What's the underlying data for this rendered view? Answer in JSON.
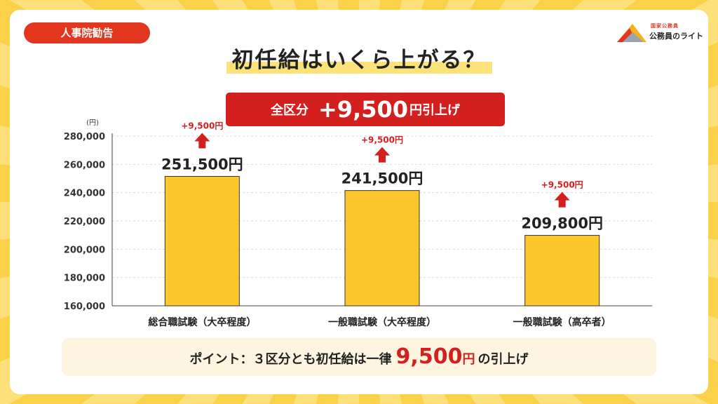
{
  "tag": "人事院勧告",
  "logo": {
    "small": "国家公務員",
    "text": "公務員のライト"
  },
  "title": "初任給はいくら上がる？",
  "banner": {
    "prefix": "全区分",
    "amount": "+9,500",
    "yen": "円",
    "suffix": "引上げ"
  },
  "colors": {
    "bar": "#fcc72c",
    "red": "#d41f1f",
    "accent": "#e2371e",
    "highlight": "#fbe37a"
  },
  "chart_data": {
    "type": "bar",
    "unit_label": "(円)",
    "ylim": [
      160000,
      280000
    ],
    "yticks": [
      160000,
      180000,
      200000,
      220000,
      240000,
      260000,
      280000
    ],
    "ytick_labels": [
      "160,000",
      "180,000",
      "200,000",
      "220,000",
      "240,000",
      "260,000",
      "280,000"
    ],
    "grid": true,
    "categories": [
      "総合職試験（大卒程度）",
      "一般職試験（大卒程度）",
      "一般職試験（高卒者）"
    ],
    "values": [
      251500,
      241500,
      209800
    ],
    "value_labels": [
      "251,500円",
      "241,500円",
      "209,800円"
    ],
    "increase_labels": [
      "+9,500円",
      "+9,500円",
      "+9,500円"
    ]
  },
  "point": {
    "prefix": "ポイント：３区分とも初任給は一律",
    "amount": "9,500",
    "yen": "円",
    "suffix": "の引上げ"
  }
}
